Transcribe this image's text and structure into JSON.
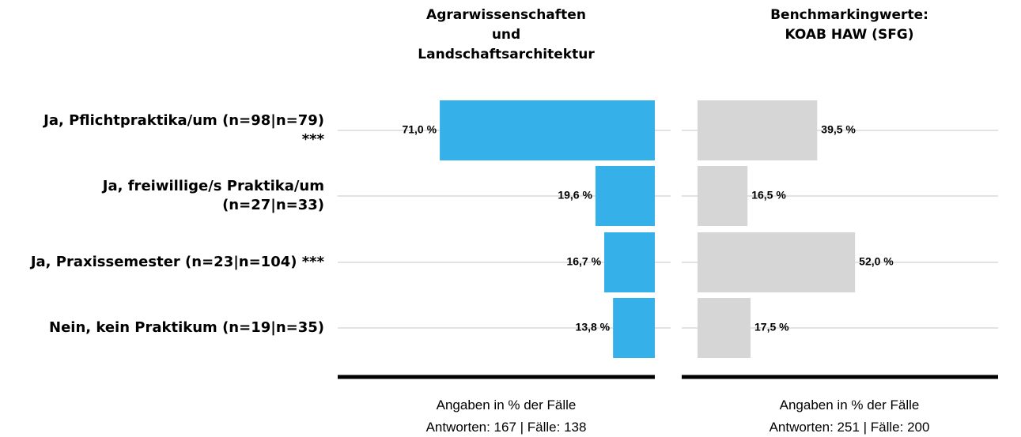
{
  "chart_data": {
    "type": "bar",
    "orientation": "horizontal",
    "categories": [
      "Ja, Pflichtpraktika/um (n=98|n=79)\n***",
      "Ja, freiwillige/s Praktika/um\n(n=27|n=33)",
      "Ja, Praxissemester (n=23|n=104) ***",
      "Nein, kein Praktikum (n=19|n=35)"
    ],
    "xlim": [
      0,
      100
    ],
    "grid": true,
    "series": [
      {
        "name": "Agrarwissenschaften\nund\nLandschaftsarchitektur",
        "color": "#35b0e8",
        "values": [
          71.0,
          19.6,
          16.7,
          13.8
        ],
        "value_labels": [
          "71,0 %",
          "19,6 %",
          "16,7 %",
          "13,8 %"
        ],
        "footer": "Angaben in % der Fälle\nAntworten: 167 | Fälle: 138"
      },
      {
        "name": "Benchmarkingwerte:\nKOAB HAW (SFG)",
        "color": "#d6d6d6",
        "values": [
          39.5,
          16.5,
          52.0,
          17.5
        ],
        "value_labels": [
          "39,5 %",
          "16,5 %",
          "52,0 %",
          "17,5 %"
        ],
        "footer": "Angaben in % der Fälle\nAntworten: 251 | Fälle: 200"
      }
    ]
  }
}
